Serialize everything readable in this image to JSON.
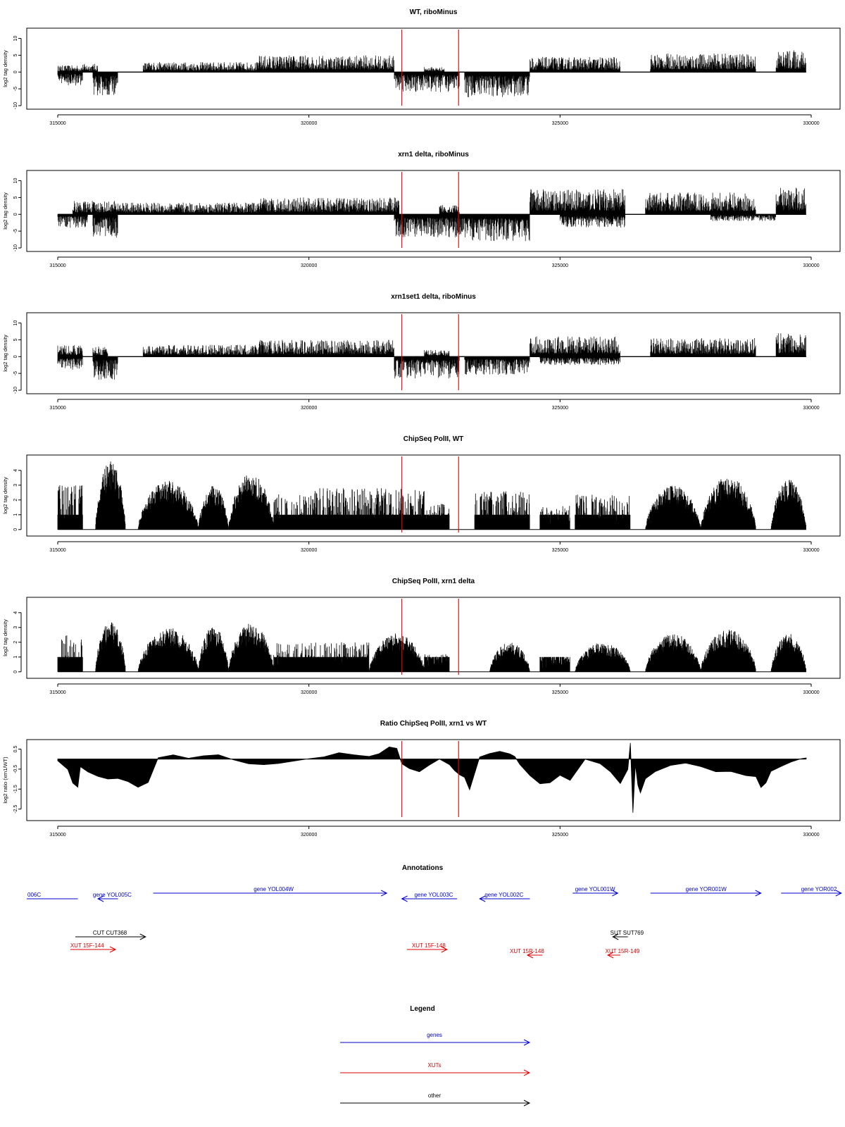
{
  "chart_data": [
    {
      "type": "bar",
      "title": "WT, riboMinus",
      "ylabel": "log2 tag density",
      "xlim": [
        315000,
        330000
      ],
      "ylim": [
        -10,
        12
      ],
      "yticks": [
        10,
        5,
        0,
        -5,
        -10
      ],
      "xticks": [
        315000,
        320000,
        325000,
        330000
      ],
      "reference_lines_x": [
        321850,
        322980
      ],
      "reference_line_color": "#e00000",
      "plus_strand_regions": [
        {
          "from": 315000,
          "to": 315500,
          "max": 2.0
        },
        {
          "from": 315500,
          "to": 315800,
          "max": 2.5
        },
        {
          "from": 316700,
          "to": 319000,
          "max": 3.0
        },
        {
          "from": 319000,
          "to": 321700,
          "max": 5.0
        },
        {
          "from": 322300,
          "to": 322700,
          "max": 1.5
        },
        {
          "from": 324400,
          "to": 326200,
          "max": 4.5
        },
        {
          "from": 326800,
          "to": 328900,
          "max": 5.5
        },
        {
          "from": 329300,
          "to": 329900,
          "max": 6.5
        }
      ],
      "minus_strand_regions": [
        {
          "from": 315000,
          "to": 315500,
          "max": 4.0
        },
        {
          "from": 315700,
          "to": 316200,
          "max": 7.0
        },
        {
          "from": 321700,
          "to": 323000,
          "max": 6.0
        },
        {
          "from": 323100,
          "to": 324400,
          "max": 7.5
        }
      ]
    },
    {
      "type": "bar",
      "title": "xrn1 delta, riboMinus",
      "ylabel": "log2 tag density",
      "xlim": [
        315000,
        330000
      ],
      "ylim": [
        -10,
        12
      ],
      "yticks": [
        10,
        5,
        0,
        -5,
        -10
      ],
      "xticks": [
        315000,
        320000,
        325000,
        330000
      ],
      "reference_lines_x": [
        321850,
        322980
      ],
      "reference_line_color": "#e00000",
      "plus_strand_regions": [
        {
          "from": 315300,
          "to": 316300,
          "max": 4.0
        },
        {
          "from": 316300,
          "to": 319000,
          "max": 3.5
        },
        {
          "from": 319000,
          "to": 321800,
          "max": 5.0
        },
        {
          "from": 322600,
          "to": 323000,
          "max": 3.0
        },
        {
          "from": 324400,
          "to": 326300,
          "max": 7.5
        },
        {
          "from": 326700,
          "to": 328900,
          "max": 6.5
        },
        {
          "from": 329300,
          "to": 329900,
          "max": 8.0
        }
      ],
      "minus_strand_regions": [
        {
          "from": 315000,
          "to": 315600,
          "max": 4.0
        },
        {
          "from": 315700,
          "to": 316200,
          "max": 7.0
        },
        {
          "from": 321700,
          "to": 323000,
          "max": 7.0
        },
        {
          "from": 323000,
          "to": 324400,
          "max": 8.0
        },
        {
          "from": 325000,
          "to": 326300,
          "max": 4.0
        },
        {
          "from": 328000,
          "to": 329300,
          "max": 2.0
        }
      ]
    },
    {
      "type": "bar",
      "title": "xrn1set1 delta, riboMinus",
      "ylabel": "log2 tag density",
      "xlim": [
        315000,
        330000
      ],
      "ylim": [
        -10,
        12
      ],
      "yticks": [
        10,
        5,
        0,
        -5,
        -10
      ],
      "xticks": [
        315000,
        320000,
        325000,
        330000
      ],
      "reference_lines_x": [
        321850,
        322980
      ],
      "reference_line_color": "#e00000",
      "plus_strand_regions": [
        {
          "from": 315000,
          "to": 315500,
          "max": 3.5
        },
        {
          "from": 315700,
          "to": 316000,
          "max": 3.0
        },
        {
          "from": 316700,
          "to": 319000,
          "max": 3.5
        },
        {
          "from": 319000,
          "to": 321700,
          "max": 5.0
        },
        {
          "from": 322300,
          "to": 322800,
          "max": 2.0
        },
        {
          "from": 324400,
          "to": 326200,
          "max": 6.0
        },
        {
          "from": 326800,
          "to": 328900,
          "max": 5.5
        },
        {
          "from": 329300,
          "to": 329900,
          "max": 7.0
        }
      ],
      "minus_strand_regions": [
        {
          "from": 315000,
          "to": 315500,
          "max": 4.0
        },
        {
          "from": 315700,
          "to": 316200,
          "max": 7.0
        },
        {
          "from": 321700,
          "to": 323000,
          "max": 6.5
        },
        {
          "from": 323100,
          "to": 324400,
          "max": 5.5
        },
        {
          "from": 324600,
          "to": 326200,
          "max": 2.5
        }
      ]
    },
    {
      "type": "bar",
      "title": "ChipSeq PolII, WT",
      "ylabel": "log2 tag density",
      "xlim": [
        315000,
        330000
      ],
      "ylim": [
        -0.2,
        4.8
      ],
      "yticks": [
        4,
        3,
        2,
        1,
        0
      ],
      "xticks": [
        315000,
        320000,
        325000,
        330000
      ],
      "reference_lines_x": [
        321850,
        322980
      ],
      "reference_line_color": "#e00000",
      "regions": [
        {
          "from": 315000,
          "to": 315500,
          "max": 3.0,
          "shape": "flat"
        },
        {
          "from": 315750,
          "to": 316350,
          "max": 4.6,
          "shape": "hump"
        },
        {
          "from": 316600,
          "to": 317800,
          "max": 3.3,
          "shape": "hump"
        },
        {
          "from": 317800,
          "to": 318400,
          "max": 3.0,
          "shape": "hump"
        },
        {
          "from": 318400,
          "to": 319300,
          "max": 3.8,
          "shape": "hump"
        },
        {
          "from": 319300,
          "to": 320000,
          "max": 2.4,
          "shape": "flat"
        },
        {
          "from": 320000,
          "to": 322300,
          "max": 2.8,
          "shape": "flat"
        },
        {
          "from": 322300,
          "to": 322800,
          "max": 1.8,
          "shape": "flat"
        },
        {
          "from": 323300,
          "to": 324400,
          "max": 2.6,
          "shape": "flat"
        },
        {
          "from": 324600,
          "to": 325200,
          "max": 1.6,
          "shape": "flat"
        },
        {
          "from": 325300,
          "to": 326400,
          "max": 2.4,
          "shape": "flat"
        },
        {
          "from": 326700,
          "to": 327800,
          "max": 3.0,
          "shape": "hump"
        },
        {
          "from": 327800,
          "to": 328900,
          "max": 3.6,
          "shape": "hump"
        },
        {
          "from": 329200,
          "to": 329900,
          "max": 3.4,
          "shape": "hump"
        }
      ]
    },
    {
      "type": "bar",
      "title": "ChipSeq PolII, xrn1 delta",
      "ylabel": "log2 tag density",
      "xlim": [
        315000,
        330000
      ],
      "ylim": [
        -0.2,
        4.8
      ],
      "yticks": [
        4,
        3,
        2,
        1,
        0
      ],
      "xticks": [
        315000,
        320000,
        325000,
        330000
      ],
      "reference_lines_x": [
        321850,
        322980
      ],
      "reference_line_color": "#e00000",
      "regions": [
        {
          "from": 315000,
          "to": 315500,
          "max": 2.5,
          "shape": "flat"
        },
        {
          "from": 315750,
          "to": 316350,
          "max": 3.4,
          "shape": "hump"
        },
        {
          "from": 316600,
          "to": 317800,
          "max": 3.0,
          "shape": "hump"
        },
        {
          "from": 317800,
          "to": 318400,
          "max": 3.1,
          "shape": "hump"
        },
        {
          "from": 318400,
          "to": 319300,
          "max": 3.3,
          "shape": "hump"
        },
        {
          "from": 319300,
          "to": 320000,
          "max": 2.0,
          "shape": "flat"
        },
        {
          "from": 320000,
          "to": 321200,
          "max": 2.0,
          "shape": "flat"
        },
        {
          "from": 321200,
          "to": 322300,
          "max": 2.6,
          "shape": "hump"
        },
        {
          "from": 322300,
          "to": 322800,
          "max": 1.2,
          "shape": "flat"
        },
        {
          "from": 323600,
          "to": 324400,
          "max": 2.0,
          "shape": "hump"
        },
        {
          "from": 324600,
          "to": 325200,
          "max": 1.0,
          "shape": "flat"
        },
        {
          "from": 325300,
          "to": 326400,
          "max": 2.0,
          "shape": "hump"
        },
        {
          "from": 326700,
          "to": 327800,
          "max": 2.6,
          "shape": "hump"
        },
        {
          "from": 327800,
          "to": 328900,
          "max": 2.9,
          "shape": "hump"
        },
        {
          "from": 329200,
          "to": 329900,
          "max": 2.6,
          "shape": "hump"
        }
      ]
    },
    {
      "type": "area",
      "title": "Ratio ChipSeq PolII, xrn1 vs WT",
      "ylabel": "log2 ratio (xrn1/WT)",
      "xlim": [
        315000,
        330000
      ],
      "ylim": [
        -2.9,
        0.8
      ],
      "yticks": [
        0.5,
        -0.5,
        -1.5,
        -2.5
      ],
      "xticks": [
        315000,
        320000,
        325000,
        330000
      ],
      "reference_lines_x": [
        321850,
        322980
      ],
      "reference_line_color": "#e00000",
      "x": [
        315000,
        315200,
        315300,
        315400,
        315450,
        315600,
        315800,
        316000,
        316200,
        316400,
        316600,
        316800,
        317000,
        317300,
        317600,
        317900,
        318200,
        318500,
        318800,
        319100,
        319400,
        319700,
        320000,
        320300,
        320600,
        320900,
        321200,
        321400,
        321600,
        321750,
        321850,
        322000,
        322200,
        322400,
        322600,
        322800,
        322900,
        323000,
        323100,
        323200,
        323400,
        323600,
        323800,
        324000,
        324100,
        324200,
        324400,
        324600,
        324800,
        325000,
        325200,
        325500,
        325800,
        326000,
        326200,
        326350,
        326400,
        326450,
        326500,
        326550,
        326600,
        326700,
        326900,
        327200,
        327500,
        327800,
        328100,
        328400,
        328700,
        328900,
        329000,
        329100,
        329200,
        329400,
        329600,
        329800,
        329900
      ],
      "y": [
        -0.1,
        -0.5,
        -1.2,
        -1.4,
        -0.4,
        -0.6,
        -0.9,
        -1.0,
        -1.0,
        -1.1,
        -1.4,
        -1.2,
        0.1,
        0.2,
        0.05,
        0.2,
        0.25,
        0.0,
        -0.2,
        -0.3,
        -0.2,
        -0.1,
        0.0,
        0.1,
        0.3,
        0.2,
        0.1,
        0.3,
        0.6,
        0.5,
        -0.2,
        -0.5,
        -0.6,
        -0.3,
        0.0,
        -0.3,
        -0.6,
        -0.8,
        -0.9,
        -1.5,
        0.1,
        0.3,
        0.4,
        0.3,
        0.1,
        -0.3,
        -0.8,
        -1.2,
        -1.2,
        -0.8,
        -1.1,
        0.0,
        -0.2,
        -0.6,
        -1.2,
        -0.5,
        0.8,
        -2.7,
        -0.3,
        -1.3,
        -1.7,
        -1.0,
        -0.6,
        -0.3,
        -0.2,
        -0.4,
        -0.6,
        -0.6,
        -0.8,
        -0.9,
        -1.4,
        -1.2,
        -0.6,
        -0.4,
        -0.1,
        0.0,
        0.1
      ]
    }
  ],
  "annotations": {
    "title": "Annotations",
    "features": [
      {
        "label": "006C",
        "category": "gene",
        "strand": "-",
        "from": 314200,
        "to": 315400,
        "row": 0,
        "label_pos": 314250
      },
      {
        "label": "gene YOL005C",
        "category": "gene",
        "strand": "-",
        "from": 315800,
        "to": 316200,
        "row": 0,
        "label_pos": 315700
      },
      {
        "label": "gene YOL004W",
        "category": "gene",
        "strand": "+",
        "from": 316900,
        "to": 321550,
        "row": -1,
        "label_pos": 318900
      },
      {
        "label": "gene YOL003C",
        "category": "gene",
        "strand": "-",
        "from": 321850,
        "to": 322950,
        "row": 0,
        "label_pos": 322100
      },
      {
        "label": "gene YOL002C",
        "category": "gene",
        "strand": "-",
        "from": 323400,
        "to": 324400,
        "row": 0,
        "label_pos": 323500
      },
      {
        "label": "gene YOL001W",
        "category": "gene",
        "strand": "+",
        "from": 325250,
        "to": 326150,
        "row": -1,
        "label_pos": 325300
      },
      {
        "label": "gene YOR001W",
        "category": "gene",
        "strand": "+",
        "from": 326800,
        "to": 329000,
        "row": -1,
        "label_pos": 327500
      },
      {
        "label": "gene YOR002",
        "category": "gene",
        "strand": "+",
        "from": 329400,
        "to": 330600,
        "row": -1,
        "label_pos": 329800
      },
      {
        "label": "CUT CUT368",
        "category": "other",
        "strand": "+",
        "from": 315350,
        "to": 316750,
        "row": 1,
        "label_pos": 315700
      },
      {
        "label": "SUT SUT769",
        "category": "other",
        "strand": "-",
        "from": 326050,
        "to": 326350,
        "row": 1,
        "label_pos": 326000
      },
      {
        "label": "XUT 15F-144",
        "category": "xut",
        "strand": "+",
        "from": 315250,
        "to": 316150,
        "row": 2,
        "label_pos": 315250
      },
      {
        "label": "XUT 15F-148",
        "category": "xut",
        "strand": "+",
        "from": 321950,
        "to": 322750,
        "row": 2,
        "label_pos": 322050
      },
      {
        "label": "XUT 15R-148",
        "category": "xut",
        "strand": "-",
        "from": 324350,
        "to": 324650,
        "row": 3,
        "label_pos": 324000
      },
      {
        "label": "XUT 15R-149",
        "category": "xut",
        "strand": "-",
        "from": 325950,
        "to": 326200,
        "row": 3,
        "label_pos": 325900
      }
    ]
  },
  "legend": {
    "title": "Legend",
    "items": [
      {
        "label": "genes",
        "color": "#0000cc"
      },
      {
        "label": "XUTs",
        "color": "#dd0000"
      },
      {
        "label": "other",
        "color": "#000000"
      }
    ]
  },
  "colors": {
    "signal": "#000000",
    "axis": "#000000",
    "reference_line": "#e00000",
    "gene": "#0000cc",
    "xut": "#dd0000",
    "other": "#000000"
  }
}
